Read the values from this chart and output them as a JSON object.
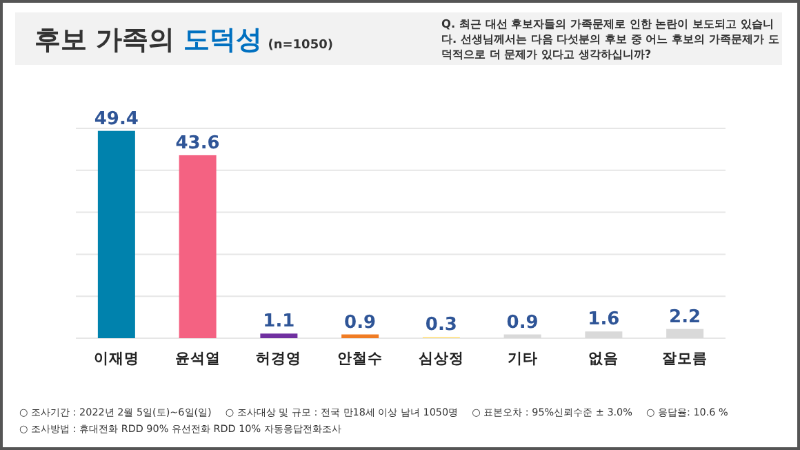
{
  "chart_data": {
    "type": "bar",
    "title": "후보 가족의 도덕성",
    "subtitle": "(n=1050)",
    "annotations": [
      "Q. 최근 대선 후보자들의 가족문제로 인한 논란이 보도되고 있습니다. 선생님께서는 다음 다섯분의 후보 중 어느 후보의 가족문제가 도덕적으로 더 문제가 있다고 생각하십니까?",
      "○ 조사기간 : 2022년 2월 5일(토)~6일(일)",
      "○ 조사대상 및 규모 : 전국 만18세 이상 남녀 1050명",
      "○ 표본오차 : 95%신뢰수준 ± 3.0%",
      "○ 응답율: 10.6 %",
      "○ 조사방법 : 휴대전화 RDD 90% 유선전화 RDD 10% 자동응답전화조사"
    ],
    "categories": [
      "이재명",
      "윤석열",
      "허경영",
      "안철수",
      "심상정",
      "기타",
      "없음",
      "잘모름"
    ],
    "values": [
      49.4,
      43.6,
      1.1,
      0.9,
      0.3,
      0.9,
      1.6,
      2.2
    ],
    "colors": [
      "#0082ad",
      "#f46282",
      "#7030a0",
      "#f07c24",
      "#ffe38a",
      "#d9d9d9",
      "#d9d9d9",
      "#d9d9d9"
    ],
    "data_labels": true,
    "ylim": [
      0,
      50
    ],
    "yticks": [
      {
        "value": 0,
        "label": null
      },
      {
        "value": 10,
        "label": null
      },
      {
        "value": 20,
        "label": null
      },
      {
        "value": 30,
        "label": null
      },
      {
        "value": 40,
        "label": null
      },
      {
        "value": 50,
        "label": null
      }
    ],
    "grid": "y",
    "tick_labels": "x"
  }
}
